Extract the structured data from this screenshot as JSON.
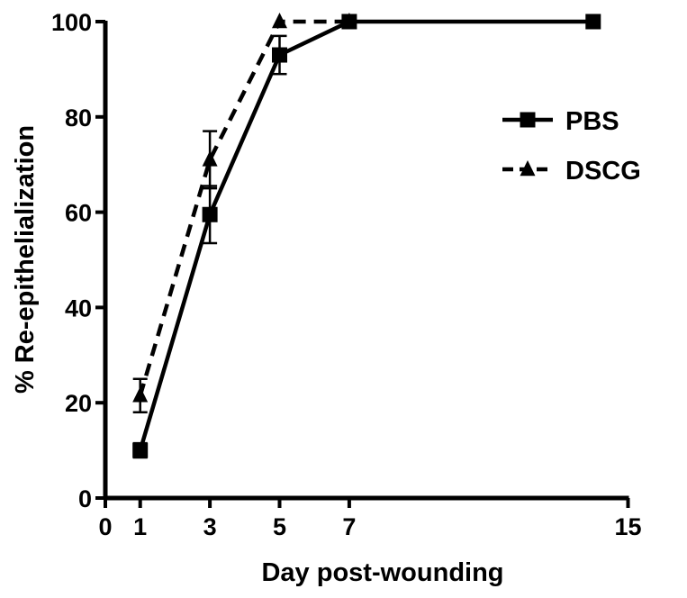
{
  "chart_data": {
    "type": "line",
    "title": "",
    "xlabel": "Day post-wounding",
    "ylabel": "% Re-epithelialization",
    "xlim": [
      0,
      15
    ],
    "ylim": [
      0,
      100
    ],
    "x_ticks": [
      0,
      1,
      3,
      5,
      7,
      15
    ],
    "y_ticks": [
      0,
      20,
      40,
      60,
      80,
      100
    ],
    "grid": false,
    "legend_position": "right",
    "series": [
      {
        "name": "PBS",
        "marker": "square",
        "line_style": "solid",
        "color": "#000000",
        "x": [
          1,
          3,
          5,
          7,
          14
        ],
        "y": [
          10,
          59.5,
          93,
          100,
          100
        ],
        "error": [
          1.5,
          6,
          4,
          0,
          0
        ]
      },
      {
        "name": "DSCG",
        "marker": "triangle",
        "line_style": "dashed",
        "color": "#000000",
        "x": [
          1,
          3,
          5,
          7
        ],
        "y": [
          21.5,
          71,
          100,
          100
        ],
        "error": [
          3.5,
          6,
          0,
          0
        ]
      }
    ]
  }
}
